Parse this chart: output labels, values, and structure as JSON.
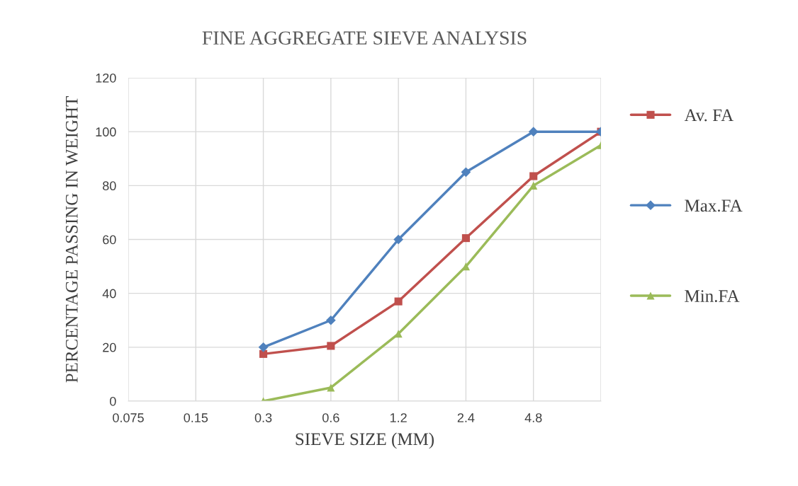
{
  "chart_data": {
    "type": "line",
    "title": "FINE AGGREGATE SIEVE ANALYSIS",
    "xlabel": "SIEVE SIZE (MM)",
    "ylabel": "PERCENTAGE PASSING IN WEIGHT",
    "categories": [
      "0.075",
      "0.15",
      "0.3",
      "0.6",
      "1.2",
      "2.4",
      "4.8",
      null
    ],
    "series": [
      {
        "name": "Av. FA",
        "color": "#c0504d",
        "marker": "square",
        "values": [
          null,
          null,
          17.5,
          20.5,
          37,
          60.5,
          83.5,
          100
        ]
      },
      {
        "name": "Max.FA",
        "color": "#4f81bd",
        "marker": "diamond",
        "values": [
          null,
          null,
          20,
          30,
          60,
          85,
          100,
          100
        ]
      },
      {
        "name": "Min.FA",
        "color": "#9bbb59",
        "marker": "triangle",
        "values": [
          null,
          null,
          0,
          5,
          25,
          50,
          80,
          95
        ]
      }
    ],
    "ylim": [
      0,
      120
    ],
    "yticks": [
      0,
      20,
      40,
      60,
      80,
      100,
      120
    ],
    "grid": true,
    "legend": "right",
    "line_style": "solid"
  }
}
